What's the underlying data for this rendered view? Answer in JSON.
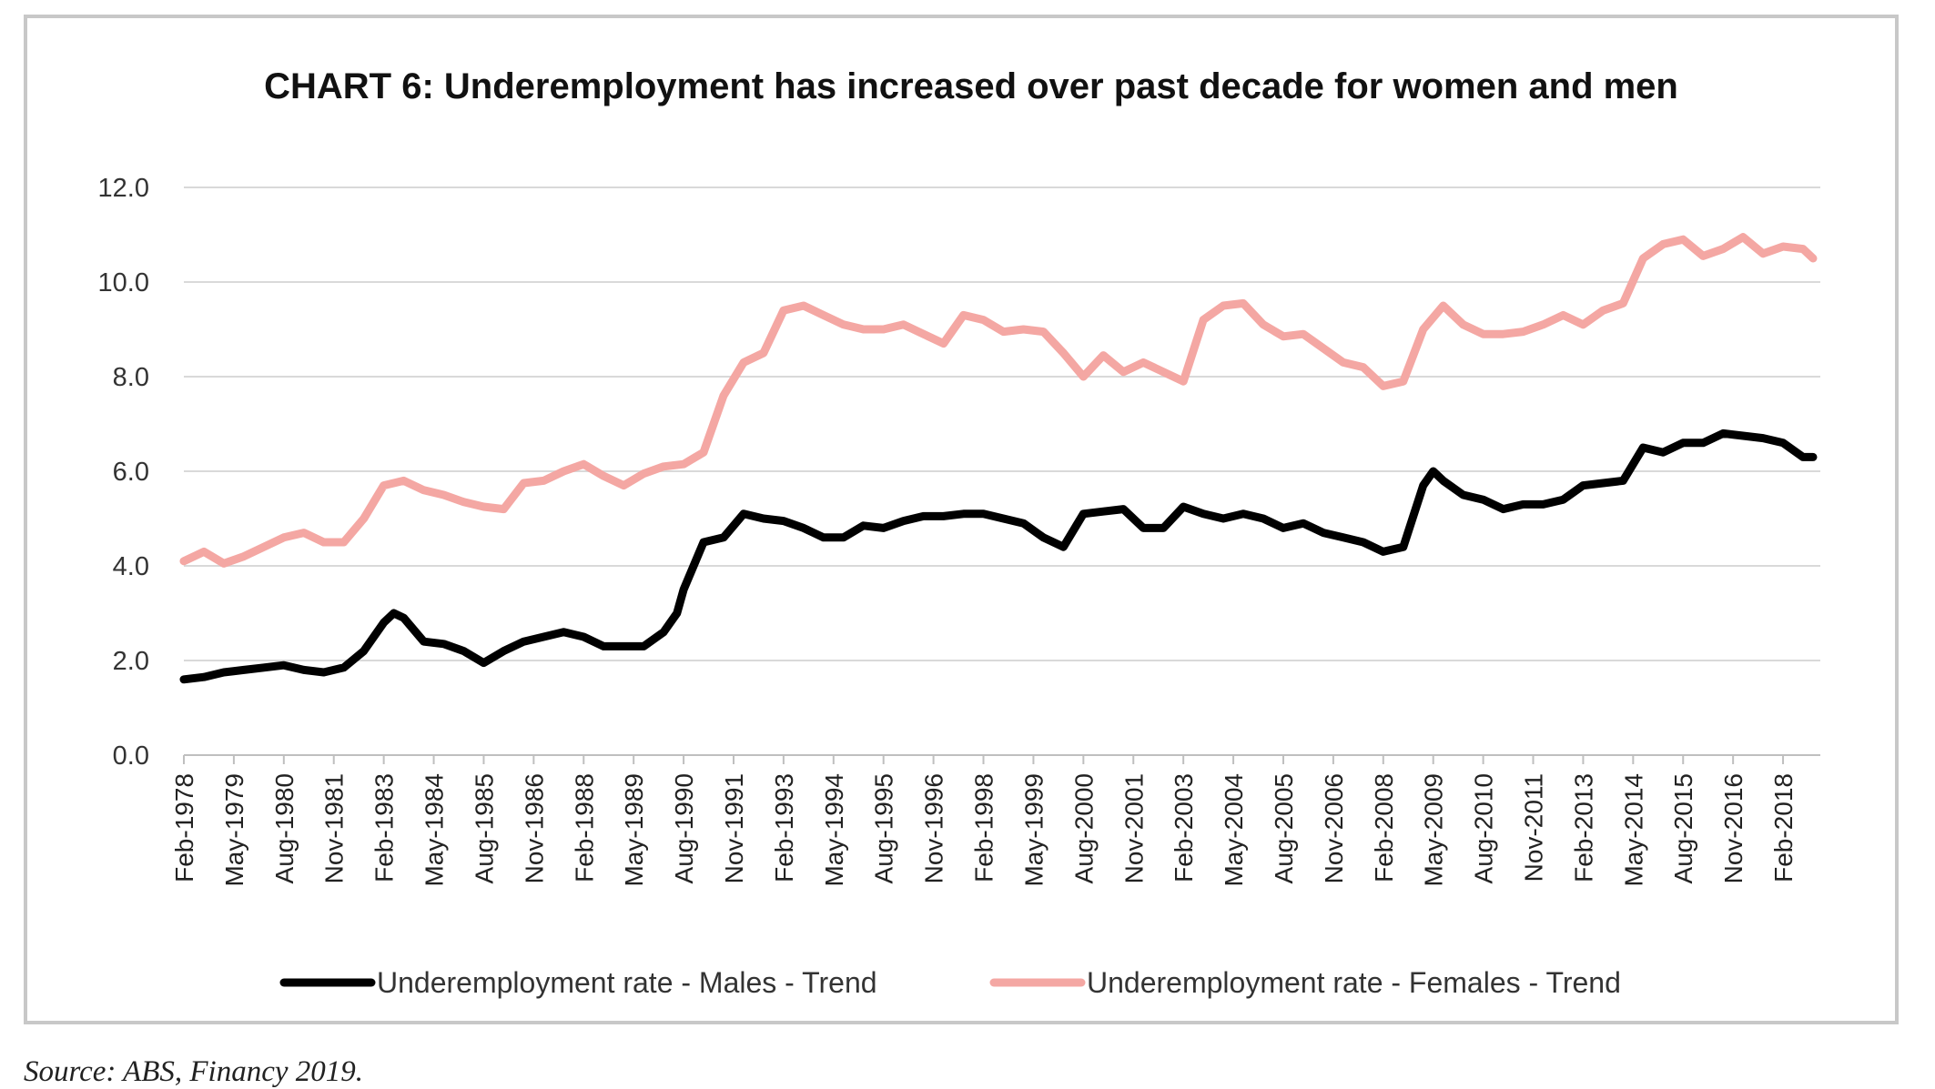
{
  "chart_data": {
    "type": "line",
    "title": "CHART 6: Underemployment has increased over past decade for women and men",
    "xlabel": "",
    "ylabel": "",
    "ylim": [
      0,
      12
    ],
    "ytick_labels": [
      "0.0",
      "2.0",
      "4.0",
      "6.0",
      "8.0",
      "10.0",
      "12.0"
    ],
    "xtick_labels": [
      "Feb-1978",
      "May-1979",
      "Aug-1980",
      "Nov-1981",
      "Feb-1983",
      "May-1984",
      "Aug-1985",
      "Nov-1986",
      "Feb-1988",
      "May-1989",
      "Aug-1990",
      "Nov-1991",
      "Feb-1993",
      "May-1994",
      "Aug-1995",
      "Nov-1996",
      "Feb-1998",
      "May-1999",
      "Aug-2000",
      "Nov-2001",
      "Feb-2003",
      "May-2004",
      "Aug-2005",
      "Nov-2006",
      "Feb-2008",
      "May-2009",
      "Aug-2010",
      "Nov-2011",
      "Feb-2013",
      "May-2014",
      "Aug-2015",
      "Nov-2016",
      "Feb-2018"
    ],
    "x_range": [
      "1978-02",
      "2018-11"
    ],
    "grid": "horizontal",
    "legend_position": "bottom",
    "series": [
      {
        "name": "Underemployment rate - Males - Trend",
        "color": "#000000",
        "x": [
          "1978-02",
          "1978-08",
          "1979-02",
          "1979-08",
          "1980-02",
          "1980-08",
          "1981-02",
          "1981-08",
          "1982-02",
          "1982-08",
          "1983-02",
          "1983-05",
          "1983-08",
          "1984-02",
          "1984-08",
          "1985-02",
          "1985-08",
          "1986-02",
          "1986-08",
          "1987-02",
          "1987-08",
          "1988-02",
          "1988-08",
          "1989-02",
          "1989-08",
          "1990-02",
          "1990-06",
          "1990-08",
          "1991-02",
          "1991-08",
          "1992-02",
          "1992-08",
          "1993-02",
          "1993-08",
          "1994-02",
          "1994-08",
          "1995-02",
          "1995-08",
          "1996-02",
          "1996-08",
          "1997-02",
          "1997-08",
          "1998-02",
          "1998-08",
          "1999-02",
          "1999-08",
          "2000-02",
          "2000-08",
          "2001-02",
          "2001-08",
          "2002-02",
          "2002-08",
          "2003-02",
          "2003-08",
          "2004-02",
          "2004-08",
          "2005-02",
          "2005-08",
          "2006-02",
          "2006-08",
          "2007-02",
          "2007-08",
          "2008-02",
          "2008-08",
          "2009-02",
          "2009-05",
          "2009-08",
          "2010-02",
          "2010-08",
          "2011-02",
          "2011-08",
          "2012-02",
          "2012-08",
          "2013-02",
          "2013-08",
          "2014-02",
          "2014-08",
          "2015-02",
          "2015-08",
          "2016-02",
          "2016-08",
          "2017-02",
          "2017-08",
          "2018-02",
          "2018-08",
          "2018-11"
        ],
        "values": [
          1.6,
          1.65,
          1.75,
          1.8,
          1.85,
          1.9,
          1.8,
          1.75,
          1.85,
          2.2,
          2.8,
          3.0,
          2.9,
          2.4,
          2.35,
          2.2,
          1.95,
          2.2,
          2.4,
          2.5,
          2.6,
          2.5,
          2.3,
          2.3,
          2.3,
          2.6,
          3.0,
          3.5,
          4.5,
          4.6,
          5.1,
          5.0,
          4.95,
          4.8,
          4.6,
          4.6,
          4.85,
          4.8,
          4.95,
          5.05,
          5.05,
          5.1,
          5.1,
          5.0,
          4.9,
          4.6,
          4.4,
          5.1,
          5.15,
          5.2,
          4.8,
          4.8,
          5.25,
          5.1,
          5.0,
          5.1,
          5.0,
          4.8,
          4.9,
          4.7,
          4.6,
          4.5,
          4.3,
          4.4,
          5.7,
          6.0,
          5.8,
          5.5,
          5.4,
          5.2,
          5.3,
          5.3,
          5.4,
          5.7,
          5.75,
          5.8,
          6.5,
          6.4,
          6.6,
          6.6,
          6.8,
          6.75,
          6.7,
          6.6,
          6.3,
          6.3
        ]
      },
      {
        "name": "Underemployment rate - Females - Trend",
        "color": "#f4a7a3",
        "x": [
          "1978-02",
          "1978-08",
          "1979-02",
          "1979-08",
          "1980-02",
          "1980-08",
          "1981-02",
          "1981-08",
          "1982-02",
          "1982-08",
          "1983-02",
          "1983-08",
          "1984-02",
          "1984-08",
          "1985-02",
          "1985-08",
          "1986-02",
          "1986-08",
          "1987-02",
          "1987-08",
          "1988-02",
          "1988-08",
          "1989-02",
          "1989-08",
          "1990-02",
          "1990-08",
          "1991-02",
          "1991-08",
          "1992-02",
          "1992-08",
          "1993-02",
          "1993-08",
          "1994-02",
          "1994-08",
          "1995-02",
          "1995-08",
          "1996-02",
          "1996-08",
          "1997-02",
          "1997-08",
          "1998-02",
          "1998-08",
          "1999-02",
          "1999-08",
          "2000-02",
          "2000-08",
          "2001-02",
          "2001-08",
          "2002-02",
          "2002-08",
          "2003-02",
          "2003-08",
          "2004-02",
          "2004-08",
          "2005-02",
          "2005-08",
          "2006-02",
          "2006-08",
          "2007-02",
          "2007-08",
          "2008-02",
          "2008-08",
          "2009-02",
          "2009-08",
          "2010-02",
          "2010-08",
          "2011-02",
          "2011-08",
          "2012-02",
          "2012-08",
          "2013-02",
          "2013-08",
          "2014-02",
          "2014-08",
          "2015-02",
          "2015-08",
          "2016-02",
          "2016-08",
          "2017-02",
          "2017-08",
          "2018-02",
          "2018-08",
          "2018-11"
        ],
        "values": [
          4.1,
          4.3,
          4.05,
          4.2,
          4.4,
          4.6,
          4.7,
          4.5,
          4.5,
          5.0,
          5.7,
          5.8,
          5.6,
          5.5,
          5.35,
          5.25,
          5.2,
          5.75,
          5.8,
          6.0,
          6.15,
          5.9,
          5.7,
          5.95,
          6.1,
          6.15,
          6.4,
          7.6,
          8.3,
          8.5,
          9.4,
          9.5,
          9.3,
          9.1,
          9.0,
          9.0,
          9.1,
          8.9,
          8.7,
          9.3,
          9.2,
          8.95,
          9.0,
          8.95,
          8.5,
          8.0,
          8.45,
          8.1,
          8.3,
          8.1,
          7.9,
          9.2,
          9.5,
          9.55,
          9.1,
          8.85,
          8.9,
          8.6,
          8.3,
          8.2,
          7.8,
          7.9,
          9.0,
          9.5,
          9.1,
          8.9,
          8.9,
          8.95,
          9.1,
          9.3,
          9.1,
          9.4,
          9.55,
          10.5,
          10.8,
          10.9,
          10.55,
          10.7,
          10.95,
          10.6,
          10.75,
          10.7,
          10.5
        ]
      }
    ]
  },
  "source": "Source: ABS, Financy 2019."
}
